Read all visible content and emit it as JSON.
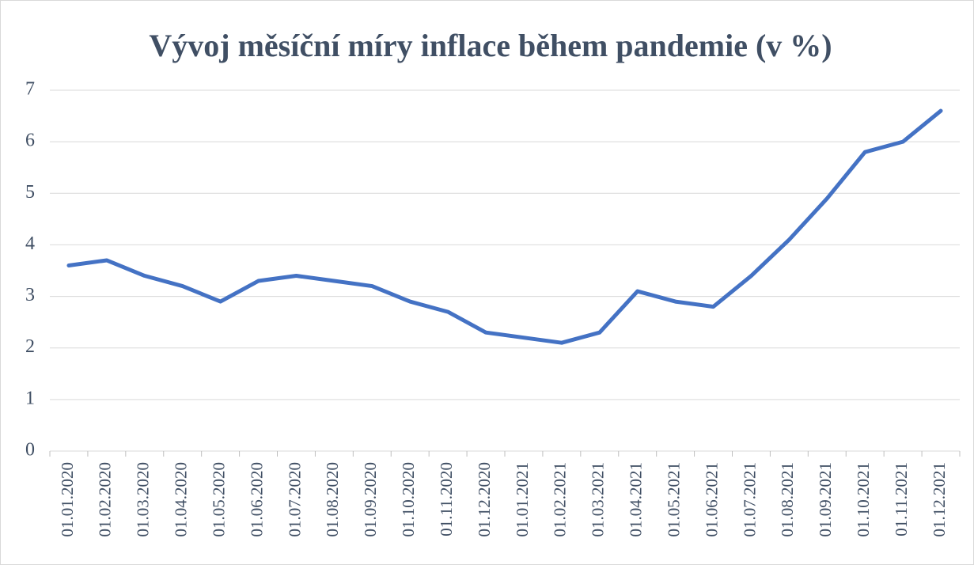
{
  "chart_data": {
    "type": "line",
    "title": "Vývoj měsíční míry inflace během pandemie (v %)",
    "categories": [
      "01.01.2020",
      "01.02.2020",
      "01.03.2020",
      "01.04.2020",
      "01.05.2020",
      "01.06.2020",
      "01.07.2020",
      "01.08.2020",
      "01.09.2020",
      "01.10.2020",
      "01.11.2020",
      "01.12.2020",
      "01.01.2021",
      "01.02.2021",
      "01.03.2021",
      "01.04.2021",
      "01.05.2021",
      "01.06.2021",
      "01.07.2021",
      "01.08.2021",
      "01.09.2021",
      "01.10.2021",
      "01.11.2021",
      "01.12.2021"
    ],
    "values": [
      3.6,
      3.7,
      3.4,
      3.2,
      2.9,
      3.3,
      3.4,
      3.3,
      3.2,
      2.9,
      2.7,
      2.3,
      2.2,
      2.1,
      2.3,
      3.1,
      2.9,
      2.8,
      3.4,
      4.1,
      4.9,
      5.8,
      6.0,
      6.6
    ],
    "color": "#4472c4",
    "ylim": [
      0,
      7
    ],
    "yticks": [
      0,
      1,
      2,
      3,
      4,
      5,
      6,
      7
    ],
    "grid": true
  }
}
